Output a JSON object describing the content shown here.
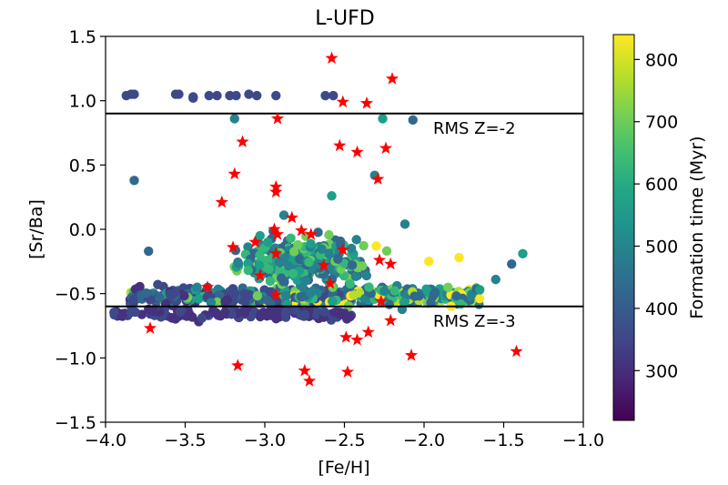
{
  "chart_data": {
    "type": "scatter",
    "title": "L-UFD",
    "xlabel": "[Fe/H]",
    "ylabel": "[Sr/Ba]",
    "xlim": [
      -4.0,
      -1.0
    ],
    "ylim": [
      -1.5,
      1.5
    ],
    "x_ticks": [
      "−4.0",
      "−3.5",
      "−3.0",
      "−2.5",
      "−2.0",
      "−1.5",
      "−1.0"
    ],
    "y_ticks": [
      "1.5",
      "1.0",
      "0.5",
      "0.0",
      "−0.5",
      "−1.0",
      "−1.5"
    ],
    "colorbar": {
      "label": "Formation time (Myr)",
      "range": [
        220,
        840
      ],
      "ticks": [
        "800",
        "700",
        "600",
        "500",
        "400",
        "300"
      ],
      "colormap": "viridis"
    },
    "hlines": [
      {
        "y": 0.9,
        "label": "RMS Z=-2"
      },
      {
        "y": -0.6,
        "label": "RMS Z=-3"
      }
    ],
    "series": [
      {
        "marker": "star",
        "color": "#ff0000",
        "points": [
          [
            -2.58,
            1.33
          ],
          [
            -2.2,
            1.17
          ],
          [
            -2.51,
            0.99
          ],
          [
            -2.36,
            0.98
          ],
          [
            -2.92,
            0.86
          ],
          [
            -2.53,
            0.65
          ],
          [
            -3.14,
            0.68
          ],
          [
            -2.42,
            0.6
          ],
          [
            -2.24,
            0.63
          ],
          [
            -3.19,
            0.43
          ],
          [
            -2.29,
            0.39
          ],
          [
            -2.93,
            0.33
          ],
          [
            -2.93,
            0.29
          ],
          [
            -3.27,
            0.21
          ],
          [
            -2.94,
            0.0
          ],
          [
            -2.83,
            0.09
          ],
          [
            -2.77,
            -0.01
          ],
          [
            -2.71,
            -0.04
          ],
          [
            -2.92,
            -0.04
          ],
          [
            -3.2,
            -0.14
          ],
          [
            -3.06,
            -0.1
          ],
          [
            -2.93,
            -0.19
          ],
          [
            -2.63,
            -0.28
          ],
          [
            -2.51,
            -0.16
          ],
          [
            -2.28,
            -0.24
          ],
          [
            -2.21,
            -0.27
          ],
          [
            -3.03,
            -0.36
          ],
          [
            -2.59,
            -0.42
          ],
          [
            -3.36,
            -0.45
          ],
          [
            -2.93,
            -0.51
          ],
          [
            -2.27,
            -0.56
          ],
          [
            -2.21,
            -0.71
          ],
          [
            -3.72,
            -0.77
          ],
          [
            -2.35,
            -0.8
          ],
          [
            -2.49,
            -0.84
          ],
          [
            -2.42,
            -0.86
          ],
          [
            -2.08,
            -0.98
          ],
          [
            -1.42,
            -0.95
          ],
          [
            -3.17,
            -1.06
          ],
          [
            -2.75,
            -1.1
          ],
          [
            -2.48,
            -1.11
          ],
          [
            -2.72,
            -1.18
          ]
        ]
      }
    ]
  }
}
